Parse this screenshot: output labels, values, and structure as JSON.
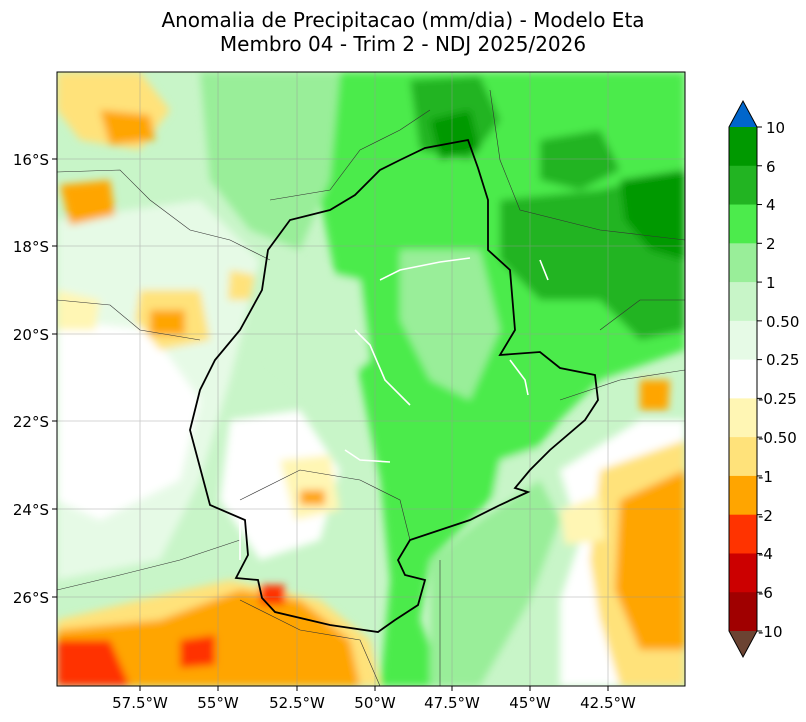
{
  "title": {
    "line1": "Anomalia de Precipitacao (mm/dia) - Modelo Eta",
    "line2": "Membro 04 - Trim 2 - NDJ 2025/2026"
  },
  "map": {
    "lat_ticks": [
      "16°S",
      "18°S",
      "20°S",
      "22°S",
      "24°S",
      "26°S"
    ],
    "lon_ticks": [
      "57.5°W",
      "55°W",
      "52.5°W",
      "50°W",
      "47.5°W",
      "45°W",
      "42.5°W"
    ]
  },
  "colorbar": {
    "labels": [
      "10",
      "6",
      "4",
      "2",
      "1",
      "0.50",
      "0.25",
      "-0.25",
      "-0.50",
      "-1",
      "-2",
      "-4",
      "-6",
      "-10"
    ],
    "colors": [
      "#0066cc",
      "#009900",
      "#22b422",
      "#4ceb4c",
      "#99ee99",
      "#c8f5c8",
      "#e6fae6",
      "#ffffff",
      "#fff6b4",
      "#ffe27a",
      "#ffa500",
      "#ff3300",
      "#cc0000",
      "#a00000",
      "#6b4332"
    ]
  }
}
